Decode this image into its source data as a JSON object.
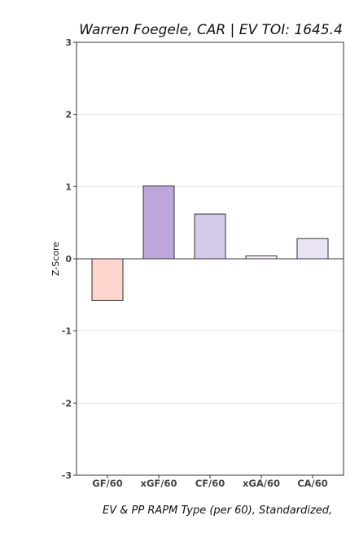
{
  "chart_data": {
    "type": "bar",
    "title": "Warren Foegele, CAR  |  EV TOI: 1645.4",
    "xlabel": "EV & PP RAPM Type (per 60), Standardized,",
    "ylabel": "Z-Score",
    "ylim": [
      -3,
      3
    ],
    "yticks": [
      "-3",
      "-2",
      "-1",
      "0",
      "1",
      "2",
      "3"
    ],
    "grid": true,
    "categories": [
      "GF/60",
      "xGF/60",
      "CF/60",
      "xGA/60",
      "CA/60"
    ],
    "values": [
      -0.58,
      1.01,
      0.62,
      0.04,
      0.28
    ],
    "colors": [
      "#fdd5cc",
      "#bca6dc",
      "#d5c9ea",
      "#f6f2fa",
      "#ebe4f4"
    ]
  }
}
